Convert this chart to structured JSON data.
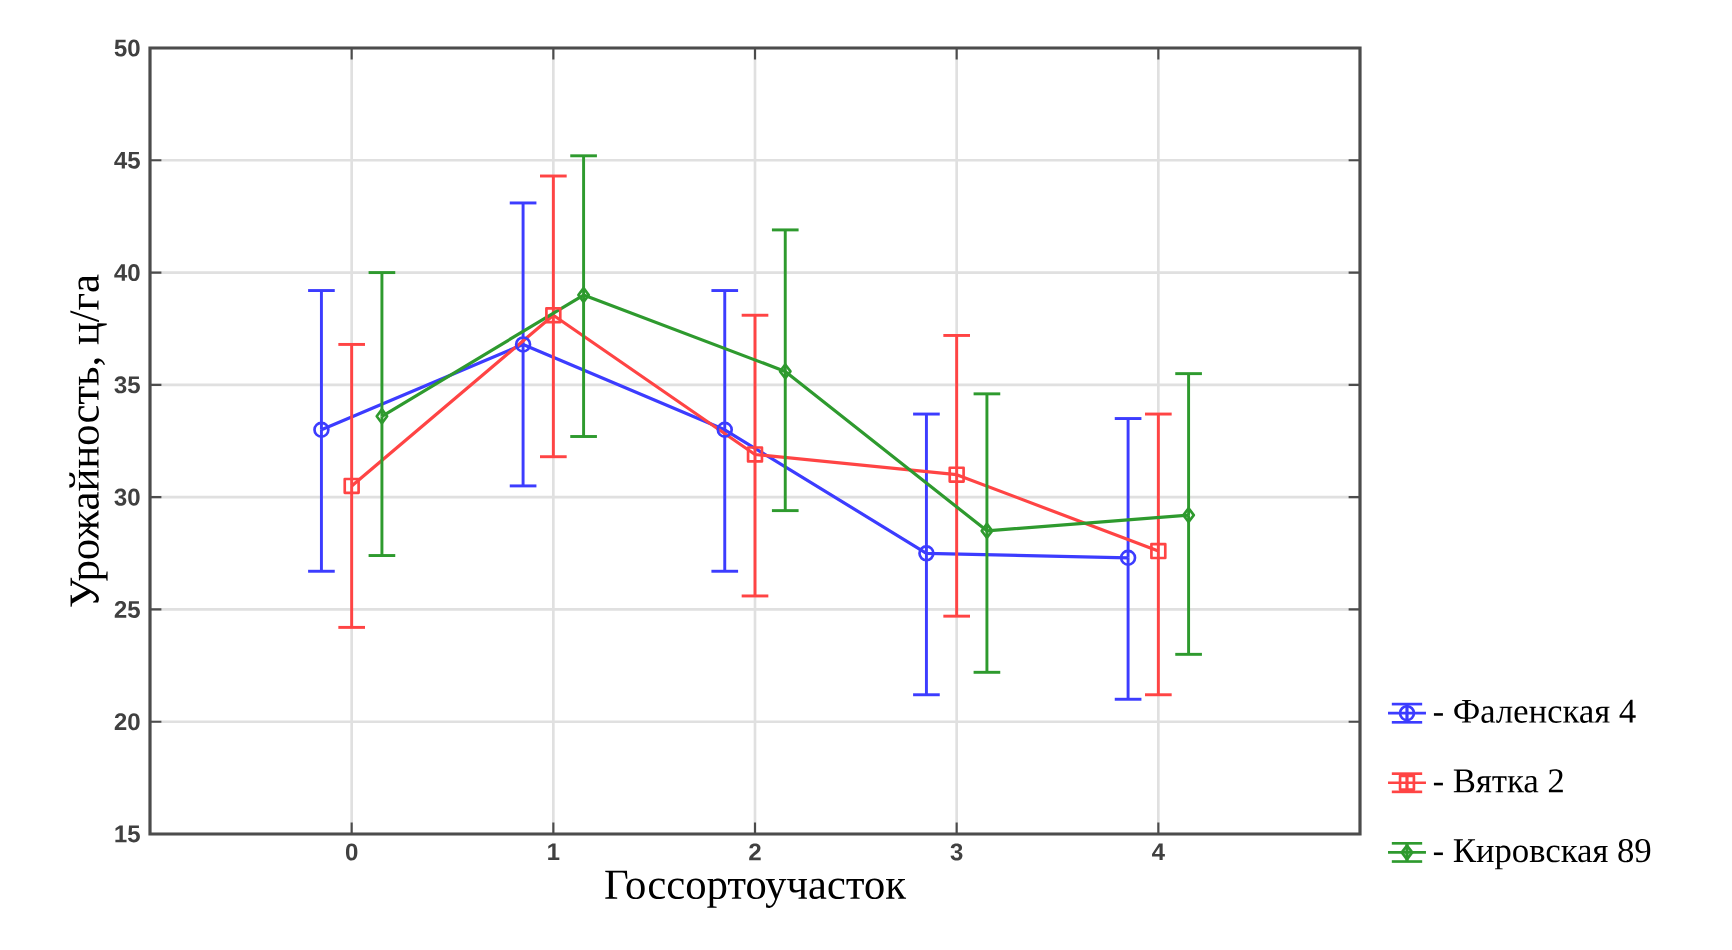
{
  "chart_data": {
    "type": "line",
    "xlabel": "Госсортоучасток",
    "ylabel": "Урожайность, ц/га",
    "xlim": [
      -1,
      5
    ],
    "xticks": [
      0,
      1,
      2,
      3,
      4
    ],
    "ylim": [
      15,
      50
    ],
    "yticks": [
      15,
      20,
      25,
      30,
      35,
      40,
      45,
      50
    ],
    "grid": true,
    "legend": "bottom right",
    "series": [
      {
        "name": "- Фаленская 4",
        "color": "#3c3cff",
        "marker": "circle",
        "x": [
          -0.15,
          0.85,
          1.85,
          2.85,
          3.85
        ],
        "values": [
          33.0,
          36.8,
          33.0,
          27.5,
          27.3
        ],
        "errors": [
          [
            26.7,
            39.2
          ],
          [
            30.5,
            43.1
          ],
          [
            26.7,
            39.2
          ],
          [
            21.2,
            33.7
          ],
          [
            21.0,
            33.5
          ]
        ]
      },
      {
        "name": "- Вятка 2",
        "color": "#ff4444",
        "marker": "square",
        "x": [
          0,
          1,
          2,
          3,
          4
        ],
        "values": [
          30.5,
          38.1,
          31.9,
          31.0,
          27.6
        ],
        "errors": [
          [
            24.2,
            36.8
          ],
          [
            31.8,
            44.3
          ],
          [
            25.6,
            38.1
          ],
          [
            24.7,
            37.2
          ],
          [
            21.2,
            33.7
          ]
        ]
      },
      {
        "name": "- Кировская 89",
        "color": "#2e9a2e",
        "marker": "diamond",
        "x": [
          0.15,
          1.15,
          2.15,
          3.15,
          4.15
        ],
        "values": [
          33.6,
          39.0,
          35.6,
          28.5,
          29.2
        ],
        "errors": [
          [
            27.4,
            40.0
          ],
          [
            32.7,
            45.2
          ],
          [
            29.4,
            41.9
          ],
          [
            22.2,
            34.6
          ],
          [
            23.0,
            35.5
          ]
        ]
      }
    ]
  }
}
